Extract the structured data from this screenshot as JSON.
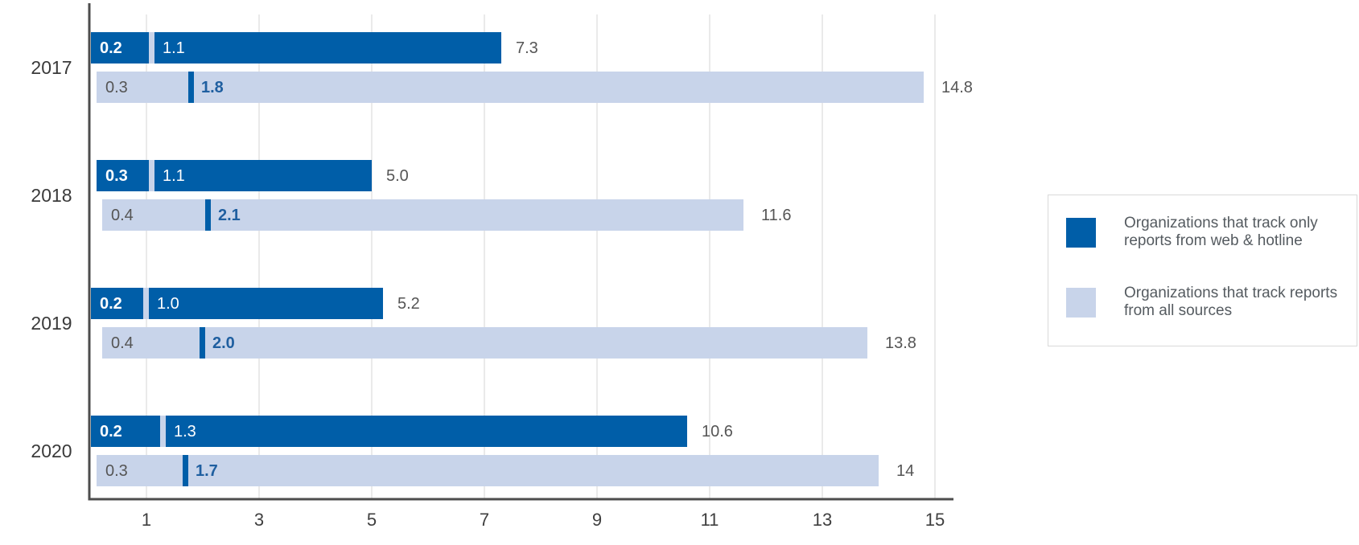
{
  "chart_data": {
    "type": "bar",
    "title": "",
    "xlabel": "",
    "ylabel": "",
    "categories": [
      "2017",
      "2018",
      "2019",
      "2020"
    ],
    "xlim": [
      0.2,
      15
    ],
    "x_ticks": [
      "1",
      "3",
      "5",
      "7",
      "9",
      "11",
      "13",
      "15"
    ],
    "grid": true,
    "legend_position": "right",
    "series": [
      {
        "name": "Organizations that track only reports from web & hotline",
        "color": "#005ea8",
        "low": [
          0.2,
          0.3,
          0.2,
          0.2
        ],
        "low_labels": [
          "0.2",
          "0.3",
          "0.2",
          "0.2"
        ],
        "median": [
          1.1,
          1.1,
          1.0,
          1.3
        ],
        "median_labels": [
          "1.1",
          "1.1",
          "1.0",
          "1.3"
        ],
        "high": [
          7.3,
          5.0,
          5.2,
          10.6
        ],
        "high_labels": [
          "7.3",
          "5.0",
          "5.2",
          "10.6"
        ]
      },
      {
        "name": "Organizations that track reports from all sources",
        "color": "#c8d4ea",
        "low": [
          0.3,
          0.4,
          0.4,
          0.3
        ],
        "low_labels": [
          "0.3",
          "0.4",
          "0.4",
          "0.3"
        ],
        "median": [
          1.8,
          2.1,
          2.0,
          1.7
        ],
        "median_labels": [
          "1.8",
          "2.1",
          "2.0",
          "1.7"
        ],
        "high": [
          14.8,
          11.6,
          13.8,
          14
        ],
        "high_labels": [
          "14.8",
          "11.6",
          "13.8",
          "14"
        ]
      }
    ]
  },
  "legend": {
    "items": [
      {
        "label": "Organizations that track only reports from web & hotline",
        "color": "#005ea8"
      },
      {
        "label": "Organizations that track reports from all sources",
        "color": "#c8d4ea"
      }
    ]
  }
}
